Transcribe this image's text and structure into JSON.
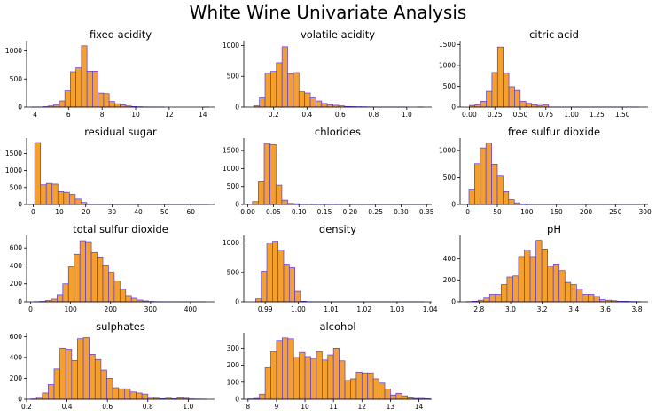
{
  "title": "White Wine Univariate Analysis",
  "colors": {
    "bar_fill": "#f4a02e",
    "bar_edge": "#5b3ad6",
    "axis": "#000000"
  },
  "chart_data": [
    {
      "type": "bar",
      "title": "fixed acidity",
      "xlim": [
        3.5,
        14.7
      ],
      "ylim": [
        0,
        1150
      ],
      "xticks": [
        4,
        6,
        8,
        10,
        12,
        14
      ],
      "xtick_labels": [
        "4",
        "6",
        "8",
        "10",
        "12",
        "14"
      ],
      "yticks": [
        0,
        500,
        1000
      ],
      "ytick_labels": [
        "0",
        "500",
        "1000"
      ],
      "bin_start": 3.8,
      "bin_width": 0.33,
      "values": [
        2,
        1,
        8,
        20,
        45,
        110,
        290,
        630,
        700,
        1090,
        640,
        640,
        250,
        240,
        100,
        60,
        40,
        20,
        10,
        6,
        3,
        2,
        1,
        1,
        0,
        0,
        0,
        0,
        0,
        0,
        0,
        1
      ]
    },
    {
      "type": "bar",
      "title": "volatile acidity",
      "xlim": [
        0.02,
        1.15
      ],
      "ylim": [
        0,
        1050
      ],
      "xticks": [
        0.2,
        0.4,
        0.6,
        0.8,
        1.0
      ],
      "xtick_labels": [
        "0.2",
        "0.4",
        "0.6",
        "0.8",
        "1.0"
      ],
      "yticks": [
        0,
        500,
        1000
      ],
      "ytick_labels": [
        "0",
        "500",
        "1000"
      ],
      "bin_start": 0.08,
      "bin_width": 0.034,
      "values": [
        20,
        150,
        550,
        580,
        720,
        980,
        540,
        560,
        250,
        230,
        150,
        100,
        60,
        40,
        30,
        20,
        10,
        8,
        6,
        5,
        3,
        2,
        1,
        1,
        1,
        1,
        1,
        0,
        0,
        1
      ]
    },
    {
      "type": "bar",
      "title": "citric acid",
      "xlim": [
        -0.09,
        1.75
      ],
      "ylim": [
        0,
        1550
      ],
      "xticks": [
        0.0,
        0.25,
        0.5,
        0.75,
        1.0,
        1.25,
        1.5
      ],
      "xtick_labels": [
        "0.00",
        "0.25",
        "0.50",
        "0.75",
        "1.00",
        "1.25",
        "1.50"
      ],
      "yticks": [
        0,
        500,
        1000,
        1500
      ],
      "ytick_labels": [
        "0",
        "500",
        "1000",
        "1500"
      ],
      "bin_start": 0.0,
      "bin_width": 0.0554,
      "values": [
        40,
        60,
        140,
        380,
        830,
        1440,
        820,
        490,
        400,
        140,
        90,
        60,
        40,
        60,
        2,
        2,
        1,
        1,
        1,
        1,
        1,
        1,
        1,
        1,
        1,
        1,
        1,
        1,
        1,
        1
      ]
    },
    {
      "type": "bar",
      "title": "residual sugar",
      "xlim": [
        -2.5,
        69
      ],
      "ylim": [
        0,
        1900
      ],
      "xticks": [
        0,
        10,
        20,
        30,
        40,
        50,
        60
      ],
      "xtick_labels": [
        "0",
        "10",
        "20",
        "30",
        "40",
        "50",
        "60"
      ],
      "yticks": [
        0,
        500,
        1000,
        1500
      ],
      "ytick_labels": [
        "0",
        "500",
        "1000",
        "1500"
      ],
      "bin_start": 0.6,
      "bin_width": 2.2,
      "values": [
        1820,
        580,
        620,
        600,
        380,
        360,
        300,
        160,
        60,
        5,
        2,
        1,
        1,
        1,
        1,
        1,
        1,
        1,
        1,
        1,
        1,
        1,
        1,
        1,
        1,
        1,
        1,
        1,
        1,
        1
      ]
    },
    {
      "type": "bar",
      "title": "chlorides",
      "xlim": [
        -0.008,
        0.36
      ],
      "ylim": [
        0,
        1800
      ],
      "xticks": [
        0.0,
        0.05,
        0.1,
        0.15,
        0.2,
        0.25,
        0.3,
        0.35
      ],
      "xtick_labels": [
        "0.00",
        "0.05",
        "0.10",
        "0.15",
        "0.20",
        "0.25",
        "0.30",
        "0.35"
      ],
      "yticks": [
        0,
        500,
        1000,
        1500
      ],
      "ytick_labels": [
        "0",
        "500",
        "1000",
        "1500"
      ],
      "bin_start": 0.009,
      "bin_width": 0.0115,
      "values": [
        80,
        630,
        1700,
        1670,
        540,
        120,
        30,
        20,
        5,
        4,
        10,
        5,
        8,
        5,
        10,
        3,
        4,
        3,
        2,
        2,
        1,
        1,
        1,
        1,
        1,
        1,
        1,
        1,
        1,
        1
      ]
    },
    {
      "type": "bar",
      "title": "free sulfur dioxide",
      "xlim": [
        -13,
        305
      ],
      "ylim": [
        0,
        1200
      ],
      "xticks": [
        0,
        50,
        100,
        150,
        200,
        250,
        300
      ],
      "xtick_labels": [
        "0",
        "50",
        "100",
        "150",
        "200",
        "250",
        "300"
      ],
      "yticks": [
        0,
        500,
        1000
      ],
      "ytick_labels": [
        "0",
        "500",
        "1000"
      ],
      "bin_start": 2,
      "bin_width": 9.6,
      "values": [
        270,
        760,
        1050,
        1140,
        750,
        530,
        240,
        90,
        30,
        10,
        3,
        2,
        1,
        1,
        1,
        1,
        1,
        1,
        1,
        1,
        1,
        1,
        1,
        1,
        1,
        1,
        1,
        1,
        1,
        1
      ]
    },
    {
      "type": "bar",
      "title": "total sulfur dioxide",
      "xlim": [
        -10,
        460
      ],
      "ylim": [
        0,
        720
      ],
      "xticks": [
        0,
        100,
        200,
        300,
        400
      ],
      "xtick_labels": [
        "0",
        "100",
        "200",
        "300",
        "400"
      ],
      "yticks": [
        0,
        200,
        400,
        600
      ],
      "ytick_labels": [
        "0",
        "200",
        "400",
        "600"
      ],
      "bin_start": 9,
      "bin_width": 14.3,
      "values": [
        2,
        5,
        15,
        30,
        80,
        200,
        390,
        530,
        680,
        670,
        550,
        500,
        410,
        330,
        230,
        140,
        70,
        40,
        20,
        10,
        4,
        2,
        1,
        1,
        1,
        1,
        1,
        1,
        1,
        1
      ]
    },
    {
      "type": "bar",
      "title": "density",
      "xlim": [
        0.9835,
        1.0405
      ],
      "ylim": [
        0,
        1100
      ],
      "xticks": [
        0.99,
        1.0,
        1.01,
        1.02,
        1.03,
        1.04
      ],
      "xtick_labels": [
        "0.99",
        "1.00",
        "1.01",
        "1.02",
        "1.03",
        "1.04"
      ],
      "yticks": [
        0,
        500,
        1000
      ],
      "ytick_labels": [
        "0",
        "500",
        "1000"
      ],
      "bin_start": 0.9871,
      "bin_width": 0.0017,
      "values": [
        50,
        520,
        1000,
        1030,
        880,
        640,
        580,
        180,
        10,
        3,
        2,
        1,
        1,
        1,
        1,
        1,
        1,
        1,
        1,
        1,
        1,
        1,
        1,
        1,
        1,
        1,
        1,
        1,
        1,
        1
      ]
    },
    {
      "type": "bar",
      "title": "pH",
      "xlim": [
        2.68,
        3.87
      ],
      "ylim": [
        0,
        600
      ],
      "xticks": [
        2.8,
        3.0,
        3.2,
        3.4,
        3.6,
        3.8
      ],
      "xtick_labels": [
        "2.8",
        "3.0",
        "3.2",
        "3.4",
        "3.6",
        "3.8"
      ],
      "yticks": [
        0,
        200,
        400
      ],
      "ytick_labels": [
        "0",
        "200",
        "400"
      ],
      "bin_start": 2.72,
      "bin_width": 0.0367,
      "values": [
        2,
        5,
        15,
        35,
        70,
        70,
        160,
        230,
        240,
        420,
        480,
        420,
        570,
        490,
        330,
        350,
        290,
        180,
        160,
        120,
        70,
        70,
        50,
        20,
        15,
        10,
        5,
        5,
        3,
        2
      ]
    },
    {
      "type": "bar",
      "title": "sulphates",
      "xlim": [
        0.2,
        1.13
      ],
      "ylim": [
        0,
        620
      ],
      "xticks": [
        0.2,
        0.4,
        0.6,
        0.8,
        1.0
      ],
      "xtick_labels": [
        "0.2",
        "0.4",
        "0.6",
        "0.8",
        "1.0"
      ],
      "yticks": [
        0,
        200,
        400,
        600
      ],
      "ytick_labels": [
        "0",
        "200",
        "400",
        "600"
      ],
      "bin_start": 0.22,
      "bin_width": 0.029,
      "values": [
        3,
        20,
        60,
        140,
        290,
        490,
        480,
        370,
        580,
        590,
        430,
        380,
        280,
        200,
        110,
        100,
        100,
        70,
        60,
        50,
        20,
        10,
        5,
        10,
        5,
        15,
        10,
        3,
        2,
        1
      ]
    },
    {
      "type": "bar",
      "title": "alcohol",
      "xlim": [
        7.85,
        14.45
      ],
      "ylim": [
        0,
        380
      ],
      "xticks": [
        8,
        9,
        10,
        11,
        12,
        13,
        14
      ],
      "xtick_labels": [
        "8",
        "9",
        "10",
        "11",
        "12",
        "13",
        "14"
      ],
      "yticks": [
        0,
        100,
        200,
        300
      ],
      "ytick_labels": [
        "0",
        "100",
        "200",
        "300"
      ],
      "bin_start": 8.0,
      "bin_width": 0.2,
      "values": [
        2,
        5,
        30,
        185,
        280,
        345,
        360,
        355,
        245,
        275,
        250,
        240,
        280,
        230,
        260,
        300,
        225,
        110,
        120,
        160,
        155,
        155,
        120,
        95,
        60,
        25,
        35,
        20,
        8,
        5,
        5,
        3
      ]
    }
  ]
}
